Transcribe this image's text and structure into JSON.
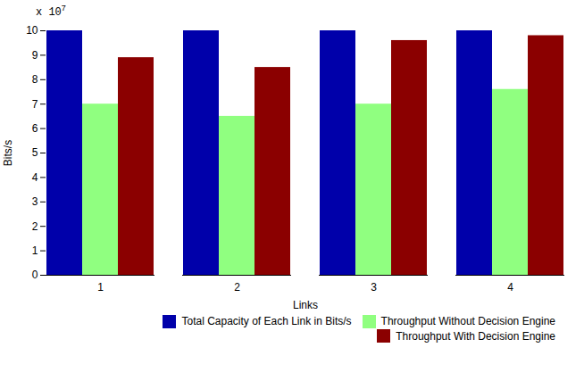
{
  "chart_data": {
    "type": "bar",
    "categories": [
      "1",
      "2",
      "3",
      "4"
    ],
    "series": [
      {
        "name": "Total Capacity of Each Link in Bits/s",
        "color": "#0000AA",
        "values": [
          10,
          10,
          10,
          10
        ]
      },
      {
        "name": "Throughput Without Decision Engine",
        "color": "#90FF80",
        "values": [
          7.0,
          6.5,
          7.0,
          7.6
        ]
      },
      {
        "name": "Throughput With Decision Engine",
        "color": "#8B0000",
        "values": [
          8.9,
          8.5,
          9.6,
          9.8
        ]
      }
    ],
    "x_label": "Links",
    "y_label": "Bits/s",
    "annotations": [
      "x 10",
      "7"
    ],
    "ylim": [
      0,
      10
    ],
    "yticks": [
      0,
      1,
      2,
      3,
      4,
      5,
      6,
      7,
      8,
      9,
      10
    ],
    "grid": false,
    "legend": "lower right"
  }
}
